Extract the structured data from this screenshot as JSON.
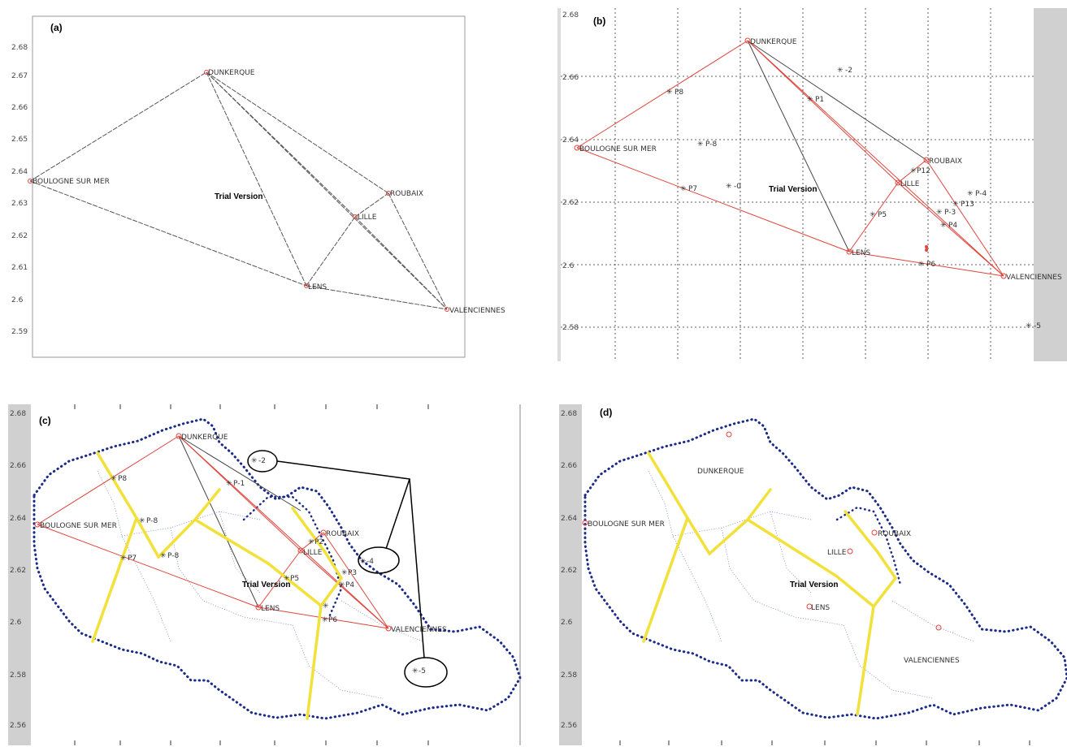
{
  "panels": {
    "a": {
      "label": "(a)",
      "watermark": "Trial Version",
      "y_ticks": [
        "2.68",
        "2.67",
        "2.66",
        "2.65",
        "2.64",
        "2.63",
        "2.62",
        "2.61",
        "2.6",
        "2.59"
      ],
      "cities": [
        {
          "name": "DUNKERQUE",
          "x": 2.48,
          "y": 2.671
        },
        {
          "name": "BOULOGNE SUR MER",
          "x": 2.0,
          "y": 2.637
        },
        {
          "name": "ROUBAIX",
          "x": 3.06,
          "y": 2.633
        },
        {
          "name": "LILLE",
          "x": 2.96,
          "y": 2.626
        },
        {
          "name": "LENS",
          "x": 2.81,
          "y": 2.604
        },
        {
          "name": "VALENCIENNES",
          "x": 3.3,
          "y": 2.597
        }
      ]
    },
    "b": {
      "label": "(b)",
      "watermark": "Trial Version",
      "y_ticks": [
        "2.68",
        "2.66",
        "2.64",
        "2.62",
        "2.6",
        "2.58"
      ],
      "cities": [
        {
          "name": "DUNKERQUE"
        },
        {
          "name": "BOULOGNE SUR MER"
        },
        {
          "name": "ROUBAIX"
        },
        {
          "name": "LILLE"
        },
        {
          "name": "LENS"
        },
        {
          "name": "VALENCIENNES"
        }
      ],
      "points": [
        "-2",
        "P1",
        "P8",
        "P-8",
        "P7",
        "-0",
        "P12",
        "P5",
        "P13",
        "P4",
        "P-3",
        "P6",
        "P-4",
        "-5"
      ]
    },
    "c": {
      "label": "(c)",
      "watermark": "Trial Version",
      "y_ticks": [
        "2.68",
        "2.66",
        "2.64",
        "2.62",
        "2.6",
        "2.58",
        "2.56"
      ],
      "cities": [
        "DUNKERQUE",
        "BOULOGNE SUR MER",
        "ROUBAIX",
        "LILLE",
        "LENS",
        "VALENCIENNES"
      ],
      "points": [
        "-2",
        "P-1",
        "P8",
        "P-8",
        "P7",
        "P-8",
        "P2",
        "P3",
        "P4",
        "P5",
        "P6",
        "-4",
        "-5"
      ]
    },
    "d": {
      "label": "(d)",
      "watermark": "Trial Version",
      "y_ticks": [
        "2.68",
        "2.66",
        "2.64",
        "2.62",
        "2.6",
        "2.58",
        "2.56"
      ],
      "cities": [
        "DUNKERQUE",
        "BOULOGNE SUR MER",
        "ROUBAIX",
        "LILLE",
        "LENS",
        "VALENCIENNES"
      ]
    }
  },
  "colors": {
    "red": "#e0443b",
    "grey": "#444444",
    "yellow": "#f2e13a",
    "blue": "#1c2a8a",
    "side": "#d0d0d0"
  }
}
